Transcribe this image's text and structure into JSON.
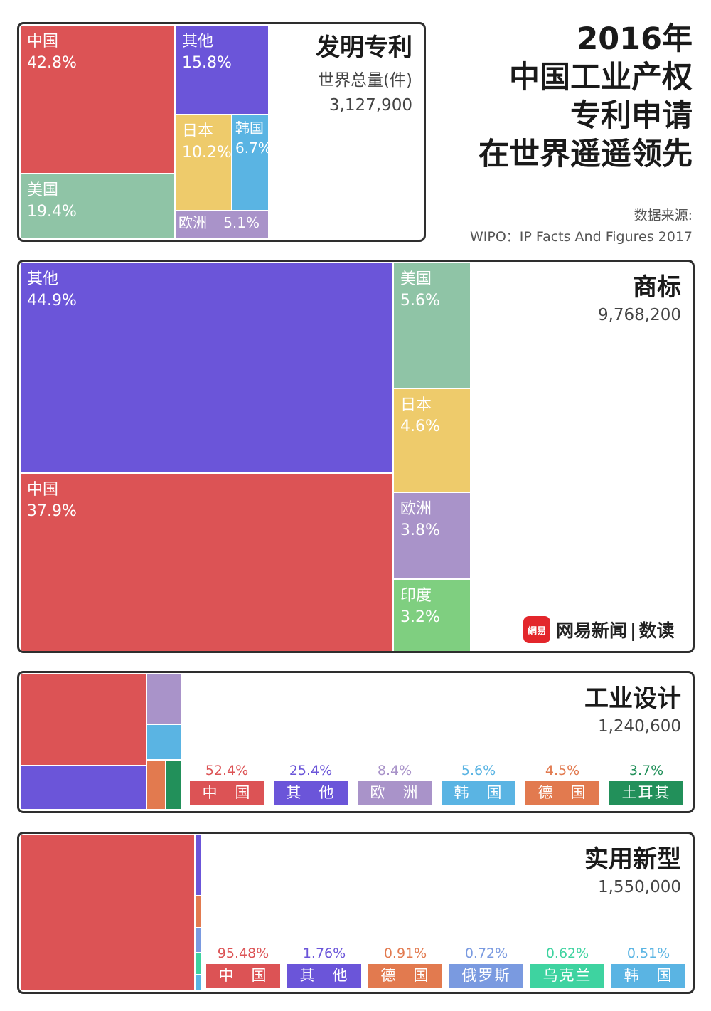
{
  "header": {
    "title_lines": [
      "2016年",
      "中国工业产权",
      "专利申请",
      "在世界遥遥领先"
    ],
    "source_label": "数据来源:",
    "source_text": "WIPO：IP Facts And Figures 2017"
  },
  "brand": {
    "logo_text": "網易",
    "name": "网易新闻",
    "divider": "|",
    "section": "数读"
  },
  "colors": {
    "中国": "#dc5355",
    "其他": "#6b55d9",
    "美国": "#8fc4a6",
    "日本": "#eecb6b",
    "韩国": "#5ab4e3",
    "欧洲": "#a993c9",
    "印度": "#7fcf80",
    "德国": "#e27a4f",
    "土耳其": "#22905a",
    "俄罗斯": "#7a9ae0",
    "乌克兰": "#3ed3a0"
  },
  "chart_data": [
    {
      "type": "treemap",
      "title": "发明专利",
      "subtitle": "世界总量(件)",
      "total": "3,127,900",
      "categories": [
        "中国",
        "美国",
        "其他",
        "日本",
        "韩国",
        "欧洲"
      ],
      "values": [
        42.8,
        19.4,
        15.8,
        10.2,
        6.7,
        5.1
      ],
      "labels": [
        "42.8%",
        "19.4%",
        "15.8%",
        "10.2%",
        "6.7%",
        "5.1%"
      ]
    },
    {
      "type": "treemap",
      "title": "商标",
      "total": "9,768,200",
      "categories": [
        "其他",
        "中国",
        "美国",
        "日本",
        "欧洲",
        "印度"
      ],
      "values": [
        44.9,
        37.9,
        5.6,
        4.6,
        3.8,
        3.2
      ],
      "labels": [
        "44.9%",
        "37.9%",
        "5.6%",
        "4.6%",
        "3.8%",
        "3.2%"
      ]
    },
    {
      "type": "treemap",
      "title": "工业设计",
      "total": "1,240,600",
      "categories": [
        "中国",
        "其他",
        "欧洲",
        "韩国",
        "德国",
        "土耳其"
      ],
      "values": [
        52.4,
        25.4,
        8.4,
        5.6,
        4.5,
        3.7
      ],
      "labels": [
        "52.4%",
        "25.4%",
        "8.4%",
        "5.6%",
        "4.5%",
        "3.7%"
      ],
      "legend_names": [
        "中　国",
        "其　他",
        "欧　洲",
        "韩　国",
        "德　国",
        "土耳其"
      ]
    },
    {
      "type": "treemap",
      "title": "实用新型",
      "total": "1,550,000",
      "categories": [
        "中国",
        "其他",
        "德国",
        "俄罗斯",
        "乌克兰",
        "韩国"
      ],
      "values": [
        95.48,
        1.76,
        0.91,
        0.72,
        0.62,
        0.51
      ],
      "labels": [
        "95.48%",
        "1.76%",
        "0.91%",
        "0.72%",
        "0.62%",
        "0.51%"
      ],
      "legend_names": [
        "中　国",
        "其　他",
        "德　国",
        "俄罗斯",
        "乌克兰",
        "韩　国"
      ]
    }
  ]
}
